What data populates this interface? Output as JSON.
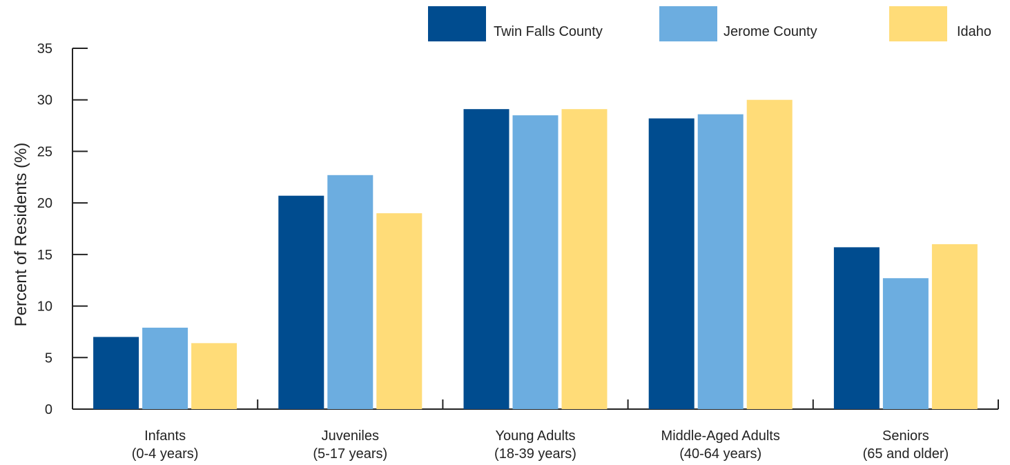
{
  "chart_data": {
    "type": "bar",
    "title": "",
    "ylabel": "Percent of Residents (%)",
    "xlabel": "",
    "ylim": [
      0,
      35
    ],
    "yticks": [
      0,
      5,
      10,
      15,
      20,
      25,
      30,
      35
    ],
    "categories": [
      {
        "line1": "Infants",
        "line2": "(0-4 years)"
      },
      {
        "line1": "Juveniles",
        "line2": "(5-17 years)"
      },
      {
        "line1": "Young Adults",
        "line2": "(18-39 years)"
      },
      {
        "line1": "Middle-Aged Adults",
        "line2": "(40-64 years)"
      },
      {
        "line1": "Seniors",
        "line2": "(65 and older)"
      }
    ],
    "series": [
      {
        "name": "Twin Falls County",
        "color": "#004C8F",
        "values": [
          7.0,
          20.7,
          29.1,
          28.2,
          15.7
        ]
      },
      {
        "name": "Jerome County",
        "color": "#6CADE0",
        "values": [
          7.9,
          22.7,
          28.5,
          28.6,
          12.7
        ]
      },
      {
        "name": "Idaho",
        "color": "#FFDC78",
        "values": [
          6.4,
          19.0,
          29.1,
          30.0,
          16.0
        ]
      }
    ],
    "legend_position": "top-right",
    "grid": false
  }
}
